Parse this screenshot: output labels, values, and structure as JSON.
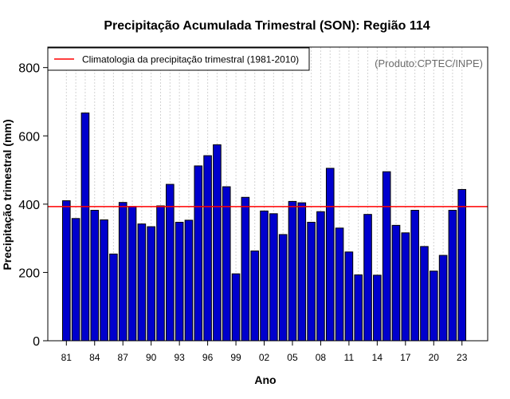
{
  "chart_data": {
    "type": "bar",
    "title": "Precipitação Acumulada Trimestral (SON): Região 114",
    "xlabel": "Ano",
    "ylabel": "Precipitação trimestral (mm)",
    "ylim": [
      0,
      860
    ],
    "yticks": [
      0,
      200,
      400,
      600,
      800
    ],
    "xtick_labels": [
      "81",
      "84",
      "87",
      "90",
      "93",
      "96",
      "99",
      "02",
      "05",
      "08",
      "11",
      "14",
      "17",
      "20",
      "23"
    ],
    "categories": [
      "1981",
      "1982",
      "1983",
      "1984",
      "1985",
      "1986",
      "1987",
      "1988",
      "1989",
      "1990",
      "1991",
      "1992",
      "1993",
      "1994",
      "1995",
      "1996",
      "1997",
      "1998",
      "1999",
      "2000",
      "2001",
      "2002",
      "2003",
      "2004",
      "2005",
      "2006",
      "2007",
      "2008",
      "2009",
      "2010",
      "2011",
      "2012",
      "2013",
      "2014",
      "2015",
      "2016",
      "2017",
      "2018",
      "2019",
      "2020",
      "2021",
      "2022",
      "2023"
    ],
    "values": [
      410,
      358,
      667,
      382,
      354,
      254,
      405,
      393,
      342,
      334,
      395,
      458,
      347,
      353,
      512,
      542,
      574,
      451,
      196,
      420,
      263,
      380,
      372,
      311,
      408,
      404,
      347,
      378,
      505,
      330,
      260,
      193,
      370,
      192,
      495,
      338,
      316,
      382,
      276,
      204,
      250,
      382,
      443
    ],
    "climatology": 393,
    "legend": [
      "Climatologia da precipitação trimestral (1981-2010)"
    ],
    "credit": "(Produto:CPTEC/INPE)",
    "colors": {
      "bar": "#0000cd",
      "climatology": "#ff0000",
      "grid": "#d3d3d3"
    },
    "grid": true
  }
}
